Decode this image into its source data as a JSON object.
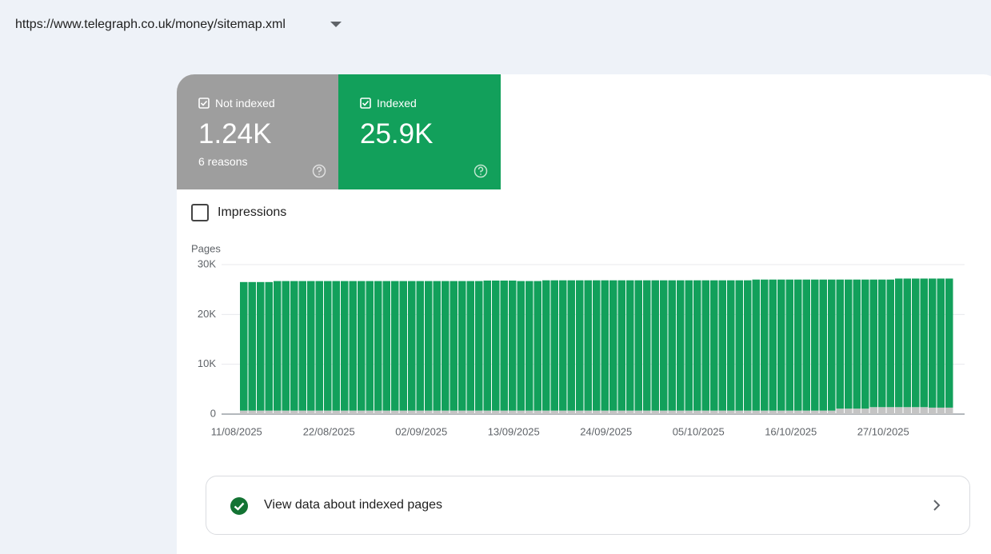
{
  "header": {
    "url": "https://www.telegraph.co.uk/money/sitemap.xml"
  },
  "summary": [
    {
      "value_label": "1.24K",
      "detail": "6 reasons"
    },
    {
      "value_label": "25.9K"
    }
  ],
  "impressions_toggle": "Impressions",
  "link": "View data about indexed pages",
  "chart_data": {
    "type": "stacked_bar",
    "ylabel": "Pages",
    "categories": [
      "11/08/2025",
      null,
      null,
      null,
      null,
      null,
      null,
      null,
      null,
      null,
      null,
      "22/08/2025",
      null,
      null,
      null,
      null,
      null,
      null,
      null,
      null,
      null,
      null,
      "02/09/2025",
      null,
      null,
      null,
      null,
      null,
      null,
      null,
      null,
      null,
      null,
      "13/09/2025",
      null,
      null,
      null,
      null,
      null,
      null,
      null,
      null,
      null,
      null,
      "24/09/2025",
      null,
      null,
      null,
      null,
      null,
      null,
      null,
      null,
      null,
      null,
      "05/10/2025",
      null,
      null,
      null,
      null,
      null,
      null,
      null,
      null,
      null,
      null,
      "16/10/2025",
      null,
      null,
      null,
      null,
      null,
      null,
      null,
      null,
      null,
      null,
      "27/10/2025",
      null,
      null,
      null,
      null,
      null,
      null,
      null
    ],
    "series": [
      {
        "name": "Not indexed",
        "color": "#c4c4c4",
        "values": [
          700,
          700,
          700,
          700,
          700,
          700,
          700,
          700,
          700,
          700,
          700,
          700,
          700,
          700,
          700,
          700,
          700,
          700,
          700,
          700,
          700,
          700,
          700,
          700,
          700,
          700,
          700,
          700,
          700,
          700,
          700,
          700,
          700,
          700,
          700,
          700,
          700,
          700,
          700,
          700,
          700,
          700,
          700,
          700,
          700,
          700,
          700,
          700,
          700,
          700,
          700,
          700,
          700,
          700,
          700,
          700,
          700,
          700,
          700,
          700,
          700,
          700,
          700,
          700,
          700,
          700,
          700,
          700,
          700,
          700,
          700,
          1100,
          1100,
          1100,
          1100,
          1400,
          1400,
          1400,
          1400,
          1400,
          1400,
          1400,
          1300,
          1300,
          1300
        ]
      },
      {
        "name": "Indexed",
        "color": "#12a05b",
        "values": [
          25800,
          25800,
          25800,
          25800,
          26000,
          26000,
          26000,
          26000,
          26000,
          26000,
          26000,
          26000,
          26000,
          26000,
          26000,
          26000,
          26000,
          26000,
          26000,
          26000,
          26000,
          26000,
          26000,
          26000,
          26000,
          26000,
          26000,
          26000,
          26000,
          26100,
          26100,
          26100,
          26100,
          26000,
          26000,
          26000,
          26150,
          26150,
          26150,
          26150,
          26150,
          26150,
          26150,
          26150,
          26150,
          26150,
          26150,
          26150,
          26150,
          26150,
          26150,
          26150,
          26150,
          26150,
          26150,
          26150,
          26150,
          26150,
          26150,
          26150,
          26150,
          26300,
          26300,
          26300,
          26300,
          26300,
          26300,
          26300,
          26300,
          26300,
          26300,
          25900,
          25900,
          25900,
          25900,
          25600,
          25600,
          25600,
          25800,
          25800,
          25800,
          25800,
          25900,
          25900,
          25900
        ]
      }
    ],
    "ylim": [
      0,
      30000
    ],
    "yticks": [
      0,
      {
        "value": 10000,
        "label": "10K"
      },
      {
        "value": 20000,
        "label": "20K"
      },
      {
        "value": 30000,
        "label": "30K"
      }
    ],
    "grid": true
  }
}
